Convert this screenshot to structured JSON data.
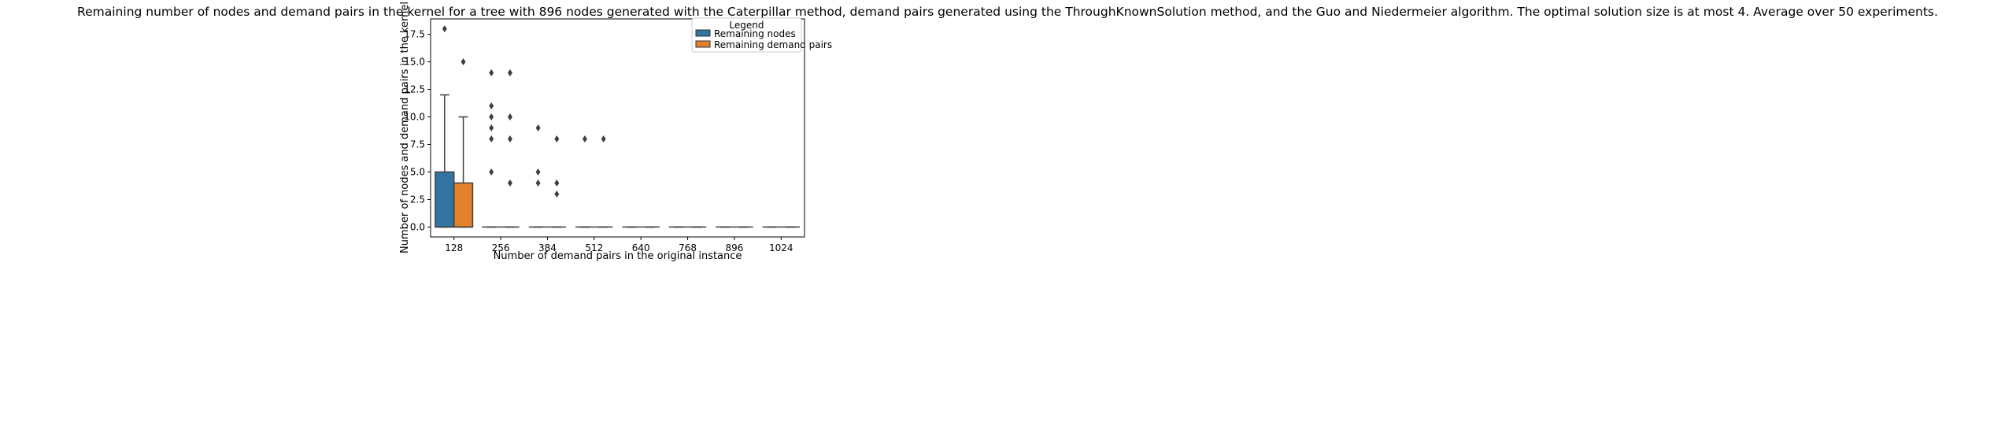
{
  "chart_data": {
    "type": "box",
    "title": "Remaining number of nodes and demand pairs in the kernel for a tree with 896 nodes generated with the Caterpillar method, demand pairs generated using the ThroughKnownSolution method, and the Guo and Niedermeier algorithm. The optimal solution size is at most 4. Average over 50 experiments.",
    "xlabel": "Number of demand pairs in the original instance",
    "ylabel": "Number of nodes and demand pairs in the kernel",
    "categories": [
      "128",
      "256",
      "384",
      "512",
      "640",
      "768",
      "896",
      "1024"
    ],
    "ylim": [
      -0.9,
      18.9
    ],
    "yticks": [
      0.0,
      2.5,
      5.0,
      7.5,
      10.0,
      12.5,
      15.0,
      17.5
    ],
    "ytick_labels": [
      "0.0",
      "2.5",
      "5.0",
      "7.5",
      "10.0",
      "12.5",
      "15.0",
      "17.5"
    ],
    "grid": false,
    "legend": {
      "title": "Legend",
      "placement": "top-right",
      "entries": [
        "Remaining nodes",
        "Remaining demand pairs"
      ]
    },
    "series": [
      {
        "name": "Remaining nodes",
        "color": "#3274a1",
        "boxes": [
          {
            "q1": 0,
            "median": 0,
            "q3": 5,
            "whisker_low": 0,
            "whisker_high": 12,
            "outliers": [
              18
            ]
          },
          {
            "q1": 0,
            "median": 0,
            "q3": 0,
            "whisker_low": 0,
            "whisker_high": 0,
            "outliers": [
              5,
              8,
              9,
              10,
              11,
              14
            ]
          },
          {
            "q1": 0,
            "median": 0,
            "q3": 0,
            "whisker_low": 0,
            "whisker_high": 0,
            "outliers": [
              4,
              5,
              9
            ]
          },
          {
            "q1": 0,
            "median": 0,
            "q3": 0,
            "whisker_low": 0,
            "whisker_high": 0,
            "outliers": [
              8
            ]
          },
          {
            "q1": 0,
            "median": 0,
            "q3": 0,
            "whisker_low": 0,
            "whisker_high": 0,
            "outliers": []
          },
          {
            "q1": 0,
            "median": 0,
            "q3": 0,
            "whisker_low": 0,
            "whisker_high": 0,
            "outliers": []
          },
          {
            "q1": 0,
            "median": 0,
            "q3": 0,
            "whisker_low": 0,
            "whisker_high": 0,
            "outliers": []
          },
          {
            "q1": 0,
            "median": 0,
            "q3": 0,
            "whisker_low": 0,
            "whisker_high": 0,
            "outliers": []
          }
        ]
      },
      {
        "name": "Remaining demand pairs",
        "color": "#e1812c",
        "boxes": [
          {
            "q1": 0,
            "median": 0,
            "q3": 4,
            "whisker_low": 0,
            "whisker_high": 10,
            "outliers": [
              15
            ]
          },
          {
            "q1": 0,
            "median": 0,
            "q3": 0,
            "whisker_low": 0,
            "whisker_high": 0,
            "outliers": [
              4,
              8,
              10,
              14
            ]
          },
          {
            "q1": 0,
            "median": 0,
            "q3": 0,
            "whisker_low": 0,
            "whisker_high": 0,
            "outliers": [
              3,
              4,
              8
            ]
          },
          {
            "q1": 0,
            "median": 0,
            "q3": 0,
            "whisker_low": 0,
            "whisker_high": 0,
            "outliers": [
              8
            ]
          },
          {
            "q1": 0,
            "median": 0,
            "q3": 0,
            "whisker_low": 0,
            "whisker_high": 0,
            "outliers": []
          },
          {
            "q1": 0,
            "median": 0,
            "q3": 0,
            "whisker_low": 0,
            "whisker_high": 0,
            "outliers": []
          },
          {
            "q1": 0,
            "median": 0,
            "q3": 0,
            "whisker_low": 0,
            "whisker_high": 0,
            "outliers": []
          },
          {
            "q1": 0,
            "median": 0,
            "q3": 0,
            "whisker_low": 0,
            "whisker_high": 0,
            "outliers": []
          }
        ]
      }
    ]
  }
}
